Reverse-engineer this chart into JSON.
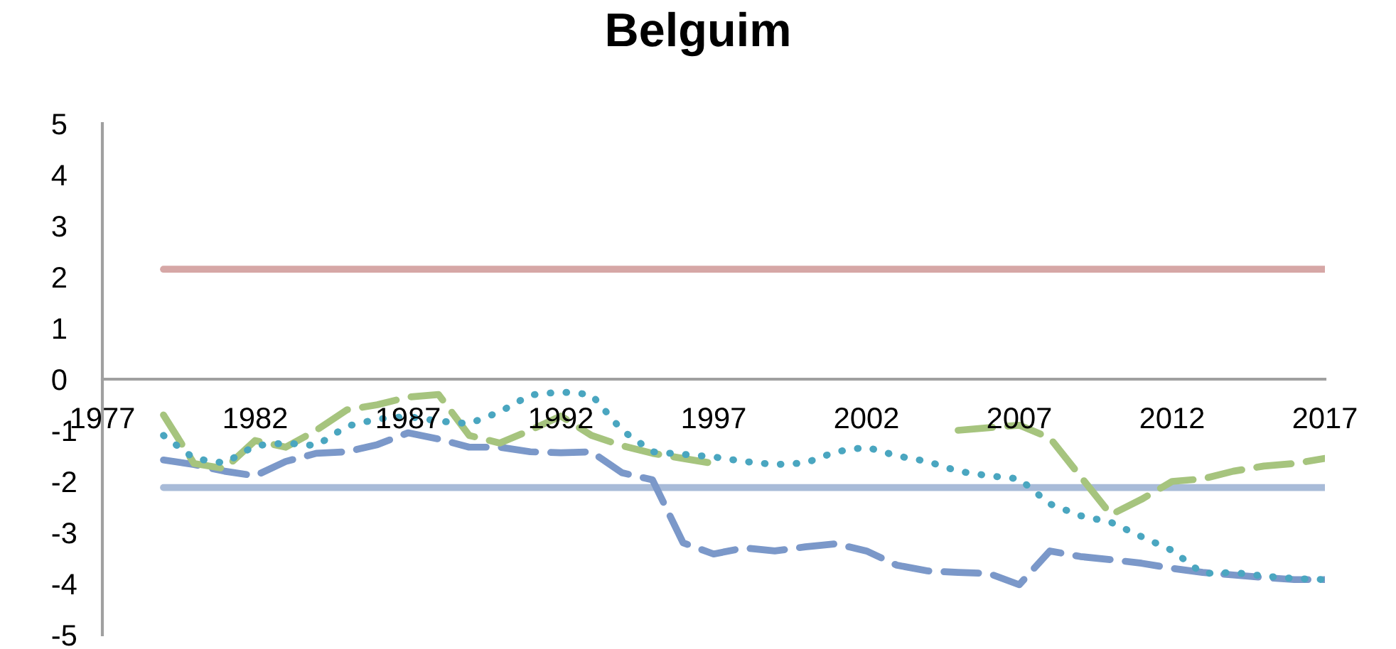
{
  "chart_data": {
    "type": "line",
    "title": "Belguim",
    "categories": [
      "1977",
      null,
      null,
      null,
      null,
      "1982",
      null,
      null,
      null,
      null,
      "1987",
      null,
      null,
      null,
      null,
      "1992",
      null,
      null,
      null,
      null,
      "1997",
      null,
      null,
      null,
      null,
      "2002",
      null,
      null,
      null,
      null,
      "2007",
      null,
      null,
      null,
      null,
      "2012",
      null,
      null,
      null,
      null,
      "2017"
    ],
    "ylim": [
      -5,
      5
    ],
    "yticks": [
      -5,
      -4,
      -3,
      -2,
      -1,
      0,
      1,
      2,
      3,
      4,
      5
    ],
    "grid": false,
    "legend": false,
    "series": [
      {
        "color": "#d6a7a6",
        "line_style": "solid",
        "values": [
          null,
          null,
          2.15,
          2.15,
          2.15,
          2.15,
          2.15,
          2.15,
          2.15,
          2.15,
          2.15,
          2.15,
          2.15,
          2.15,
          2.15,
          2.15,
          2.15,
          2.15,
          2.15,
          2.15,
          2.15,
          2.15,
          2.15,
          2.15,
          2.15,
          2.15,
          2.15,
          2.15,
          2.15,
          2.15,
          2.15,
          2.15,
          2.15,
          2.15,
          2.15,
          2.15,
          2.15,
          2.15,
          2.15,
          2.15,
          2.15
        ]
      },
      {
        "color": "#a8bbd8",
        "line_style": "solid",
        "values": [
          null,
          null,
          -2.12,
          -2.12,
          -2.12,
          -2.12,
          -2.12,
          -2.12,
          -2.12,
          -2.12,
          -2.12,
          -2.12,
          -2.12,
          -2.12,
          -2.12,
          -2.12,
          -2.12,
          -2.12,
          -2.12,
          -2.12,
          -2.12,
          -2.12,
          -2.12,
          -2.12,
          -2.12,
          -2.12,
          -2.12,
          -2.12,
          -2.12,
          -2.12,
          -2.12,
          -2.12,
          -2.12,
          -2.12,
          -2.12,
          -2.12,
          -2.12,
          -2.12,
          -2.12,
          -2.12,
          -2.12
        ]
      },
      {
        "color": "#7b98c9",
        "line_style": "dashed",
        "values": [
          null,
          null,
          -1.58,
          -1.67,
          -1.8,
          -1.89,
          -1.61,
          -1.45,
          -1.42,
          -1.28,
          -1.05,
          -1.17,
          -1.33,
          -1.33,
          -1.42,
          -1.44,
          -1.42,
          -1.83,
          -1.97,
          -3.2,
          -3.42,
          -3.3,
          -3.36,
          -3.28,
          -3.22,
          -3.36,
          -3.64,
          -3.75,
          -3.78,
          -3.8,
          -4.02,
          -3.36,
          -3.47,
          -3.53,
          -3.6,
          -3.7,
          -3.78,
          -3.83,
          -3.88,
          -3.92,
          -3.92
        ]
      },
      {
        "color": "#a6c47e",
        "line_style": "dashed",
        "values": [
          null,
          null,
          -0.7,
          -1.65,
          -1.75,
          -1.2,
          -1.33,
          -1.0,
          -0.6,
          -0.5,
          -0.35,
          -0.3,
          -1.1,
          -1.25,
          -1.0,
          -0.72,
          -1.1,
          -1.3,
          -1.45,
          -1.55,
          -1.65,
          null,
          null,
          null,
          null,
          null,
          null,
          null,
          -1.0,
          -0.95,
          -0.9,
          -1.15,
          -1.9,
          -2.65,
          -2.35,
          -2.0,
          -1.95,
          -1.8,
          -1.7,
          -1.65,
          -1.55
        ]
      },
      {
        "color": "#4aa6c0",
        "line_style": "dotted",
        "values": [
          null,
          null,
          -1.1,
          -1.55,
          -1.64,
          -1.3,
          -1.25,
          -1.3,
          -0.92,
          -0.78,
          -0.73,
          -0.82,
          -0.87,
          -0.64,
          -0.31,
          -0.25,
          -0.3,
          -1.0,
          -1.42,
          -1.47,
          -1.52,
          -1.61,
          -1.67,
          -1.64,
          -1.42,
          -1.33,
          -1.5,
          -1.61,
          -1.8,
          -1.89,
          -1.95,
          -2.44,
          -2.67,
          -2.8,
          -3.08,
          -3.35,
          -3.8,
          -3.78,
          -3.85,
          -3.9,
          -3.92
        ]
      }
    ]
  }
}
